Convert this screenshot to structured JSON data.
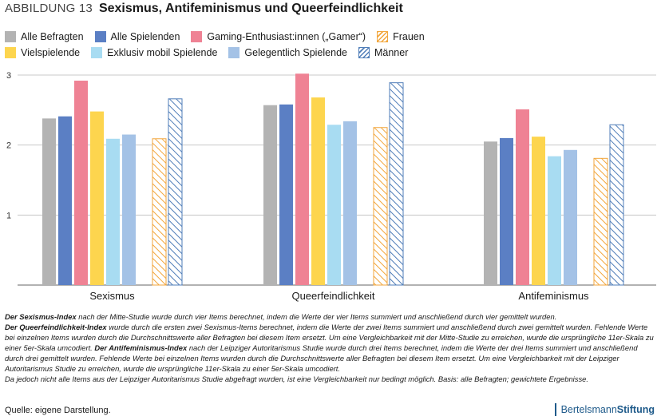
{
  "header": {
    "figure_label": "ABBILDUNG 13",
    "title": "Sexismus, Antifeminismus und Queerfeindlichkeit"
  },
  "colors": {
    "alle_befragten": "#b3b3b3",
    "alle_spielenden": "#5b7fc4",
    "gaming_enthusiasten": "#ef8294",
    "vielspielende": "#fdd54e",
    "exklusiv_mobil": "#a8dcf2",
    "gelegentlich": "#a4c2e6",
    "frauen": "#f2a63c",
    "maenner": "#4f7db8"
  },
  "chart_data": {
    "type": "bar",
    "title": "Sexismus, Antifeminismus und Queerfeindlichkeit",
    "xlabel": "",
    "ylabel": "",
    "ylim": [
      0,
      3
    ],
    "yticks": [
      1,
      2,
      3
    ],
    "grid": true,
    "legend_position": "top-left",
    "categories": [
      "Sexismus",
      "Queerfeindlichkeit",
      "Antifeminismus"
    ],
    "series": [
      {
        "name": "Alle Befragten",
        "color_key": "alle_befragten",
        "pattern": "solid",
        "values": [
          2.38,
          2.57,
          2.05
        ]
      },
      {
        "name": "Alle Spielenden",
        "color_key": "alle_spielenden",
        "pattern": "solid",
        "values": [
          2.41,
          2.58,
          2.1
        ]
      },
      {
        "name": "Gaming-Enthusiast:innen („Gamer“)",
        "color_key": "gaming_enthusiasten",
        "pattern": "solid",
        "values": [
          2.92,
          3.02,
          2.51
        ]
      },
      {
        "name": "Vielspielende",
        "color_key": "vielspielende",
        "pattern": "solid",
        "values": [
          2.48,
          2.68,
          2.12
        ]
      },
      {
        "name": "Exklusiv mobil Spielende",
        "color_key": "exklusiv_mobil",
        "pattern": "solid",
        "values": [
          2.09,
          2.29,
          1.84
        ]
      },
      {
        "name": "Gelegentlich Spielende",
        "color_key": "gelegentlich",
        "pattern": "solid",
        "values": [
          2.15,
          2.34,
          1.93
        ]
      },
      {
        "name": "Frauen",
        "color_key": "frauen",
        "pattern": "hatched",
        "values": [
          2.09,
          2.25,
          1.81
        ]
      },
      {
        "name": "Männer",
        "color_key": "maenner",
        "pattern": "hatched",
        "values": [
          2.66,
          2.89,
          2.29
        ]
      }
    ]
  },
  "legend": {
    "row1": [
      {
        "label": "Alle Befragten",
        "color_key": "alle_befragten",
        "pattern": "solid"
      },
      {
        "label": "Alle Spielenden",
        "color_key": "alle_spielenden",
        "pattern": "solid"
      },
      {
        "label": "Gaming-Enthusiast:innen („Gamer“)",
        "color_key": "gaming_enthusiasten",
        "pattern": "solid"
      },
      {
        "label": "Frauen",
        "color_key": "frauen",
        "pattern": "hatched"
      }
    ],
    "row2": [
      {
        "label": "Vielspielende",
        "color_key": "vielspielende",
        "pattern": "solid"
      },
      {
        "label": "Exklusiv mobil Spielende",
        "color_key": "exklusiv_mobil",
        "pattern": "solid"
      },
      {
        "label": "Gelegentlich Spielende",
        "color_key": "gelegentlich",
        "pattern": "solid"
      },
      {
        "label": "Männer",
        "color_key": "maenner",
        "pattern": "hatched"
      }
    ]
  },
  "footnote": {
    "p1_term": "Der Sexismus-Index",
    "p1_text": " nach der Mitte-Studie wurde durch vier Items berechnet, indem die Werte der vier Items summiert und anschließend durch vier gemittelt wurden.",
    "p2_term": "Der Queerfeindlichkeit-Index",
    "p2_text": " wurde durch die ersten zwei Sexismus-Items berechnet, indem die Werte der zwei Items summiert und anschließend durch zwei gemittelt wurden. Fehlende Werte bei einzelnen Items wurden durch die Durchschnittswerte aller Befragten bei diesem Item ersetzt. Um eine Vergleichbarkeit mit der Mitte-Studie zu erreichen, wurde die ursprüngliche 11er-Skala zu einer 5er-Skala umcodiert. ",
    "p2_term2": "Der Antifeminismus-Index",
    "p2_text2": " nach der Leipziger Autoritarismus Studie wurde durch drei Items berechnet, indem die Werte der drei Items summiert und anschließend durch drei gemittelt wurden. Fehlende Werte bei einzelnen Items wurden durch die Durchschnittswerte aller Befragten bei diesem Item ersetzt. Um eine Vergleichbarkeit mit der Leipziger Autoritarismus Studie zu erreichen, wurde die ursprüngliche 11er-Skala zu einer 5er-Skala umcodiert.",
    "p3_text": "Da jedoch nicht alle Items aus der Leipziger Autoritarismus Studie abgefragt wurden, ist eine Vergleichbarkeit nur bedingt möglich. Basis: alle Befragten; gewichtete Ergebnisse."
  },
  "source": "Quelle: eigene Darstellung.",
  "brand": {
    "light": "Bertelsmann",
    "bold": "Stiftung"
  }
}
